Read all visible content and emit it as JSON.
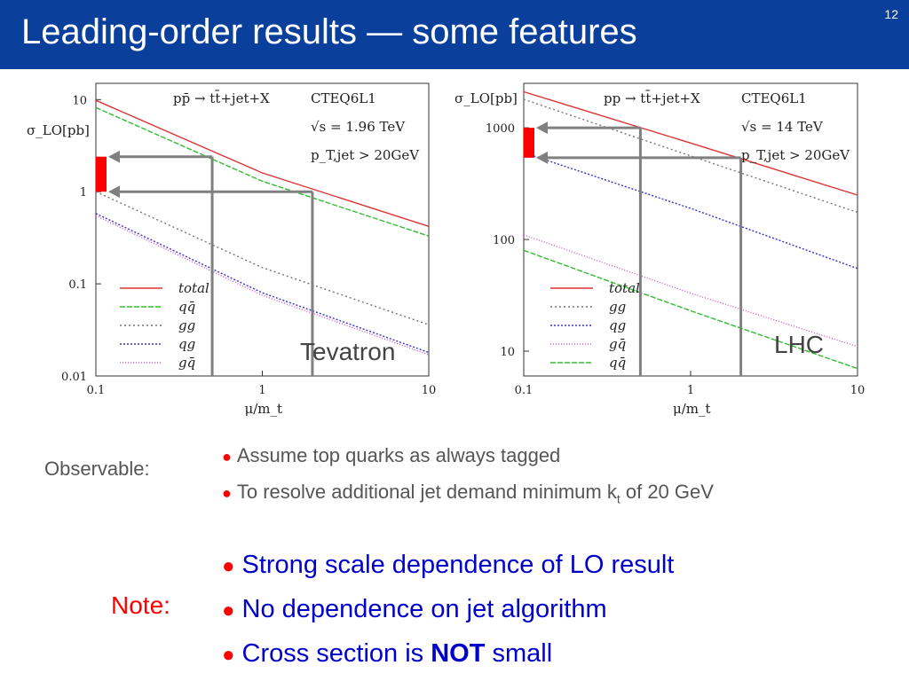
{
  "slide": {
    "title": "Leading-order results — some features",
    "number": "12"
  },
  "colors": {
    "title_bar": "#0a3f9c",
    "total": "#dd3333",
    "qqbar": "#33bb33",
    "gg": "#777777",
    "qg": "#3333cc",
    "gqbar": "#cc55cc",
    "marker": "#ff0000",
    "arrow": "#808080",
    "note_text": "#0000cc"
  },
  "chart_data": [
    {
      "type": "line",
      "panel_label": "Tevatron",
      "process": "pp̄ → tt̄+jet+X",
      "pdf": "CTEQ6L1",
      "sqrt_s": "√s = 1.96 TeV",
      "cut": "p_T,jet > 20GeV",
      "ylabel": "σ_LO[pb]",
      "xlabel": "μ/m_t",
      "x_scale": "log",
      "y_scale": "log",
      "xlim": [
        0.1,
        10
      ],
      "ylim": [
        0.01,
        15
      ],
      "x_ticks": [
        "0.1",
        "1",
        "10"
      ],
      "y_ticks": [
        "0.01",
        "0.1",
        "1",
        "10"
      ],
      "legend_position": "bottom-left",
      "series": [
        {
          "name": "total",
          "x": [
            0.1,
            1,
            10
          ],
          "y": [
            9.8,
            1.6,
            0.42
          ]
        },
        {
          "name": "qq̄",
          "x": [
            0.1,
            1,
            10
          ],
          "y": [
            8.2,
            1.3,
            0.33
          ]
        },
        {
          "name": "gg",
          "x": [
            0.1,
            1,
            10
          ],
          "y": [
            1.0,
            0.15,
            0.036
          ]
        },
        {
          "name": "qg",
          "x": [
            0.1,
            1,
            10
          ],
          "y": [
            0.58,
            0.08,
            0.018
          ]
        },
        {
          "name": "gq̄",
          "x": [
            0.1,
            1,
            10
          ],
          "y": [
            0.55,
            0.075,
            0.017
          ]
        }
      ],
      "scale_markers": [
        {
          "x": 0.5,
          "y": 2.4
        },
        {
          "x": 2,
          "y": 1.0
        }
      ]
    },
    {
      "type": "line",
      "panel_label": "LHC",
      "process": "pp → tt̄+jet+X",
      "pdf": "CTEQ6L1",
      "sqrt_s": "√s = 14 TeV",
      "cut": "p_T,jet > 20GeV",
      "ylabel": "σ_LO[pb]",
      "xlabel": "μ/m_t",
      "x_scale": "log",
      "y_scale": "log",
      "xlim": [
        0.1,
        10
      ],
      "ylim": [
        6,
        2500
      ],
      "x_ticks": [
        "0.1",
        "1",
        "10"
      ],
      "y_ticks": [
        "10",
        "100",
        "1000"
      ],
      "legend_position": "bottom-left",
      "series": [
        {
          "name": "total",
          "x": [
            0.1,
            1,
            10
          ],
          "y": [
            2100,
            730,
            250
          ]
        },
        {
          "name": "gg",
          "x": [
            0.1,
            1,
            10
          ],
          "y": [
            1800,
            560,
            175
          ]
        },
        {
          "name": "qg",
          "x": [
            0.1,
            1,
            10
          ],
          "y": [
            600,
            190,
            55
          ]
        },
        {
          "name": "gq̄",
          "x": [
            0.1,
            1,
            10
          ],
          "y": [
            110,
            33,
            11
          ]
        },
        {
          "name": "qq̄",
          "x": [
            0.1,
            1,
            10
          ],
          "y": [
            80,
            23,
            7
          ]
        }
      ],
      "scale_markers": [
        {
          "x": 0.5,
          "y": 1000
        },
        {
          "x": 2,
          "y": 540
        }
      ]
    }
  ],
  "observable": {
    "label": "Observable:",
    "bullets": [
      {
        "text": "Assume top quarks as always tagged"
      },
      {
        "text_before": "To resolve additional jet demand minimum k",
        "sub": "t",
        "text_after": " of 20 GeV"
      }
    ]
  },
  "note": {
    "label": "Note:",
    "bullets": [
      {
        "text": "Strong scale dependence of LO result"
      },
      {
        "text": "No dependence on jet algorithm"
      },
      {
        "text_before": "Cross section is ",
        "bold": "NOT",
        "text_after": " small"
      }
    ]
  }
}
